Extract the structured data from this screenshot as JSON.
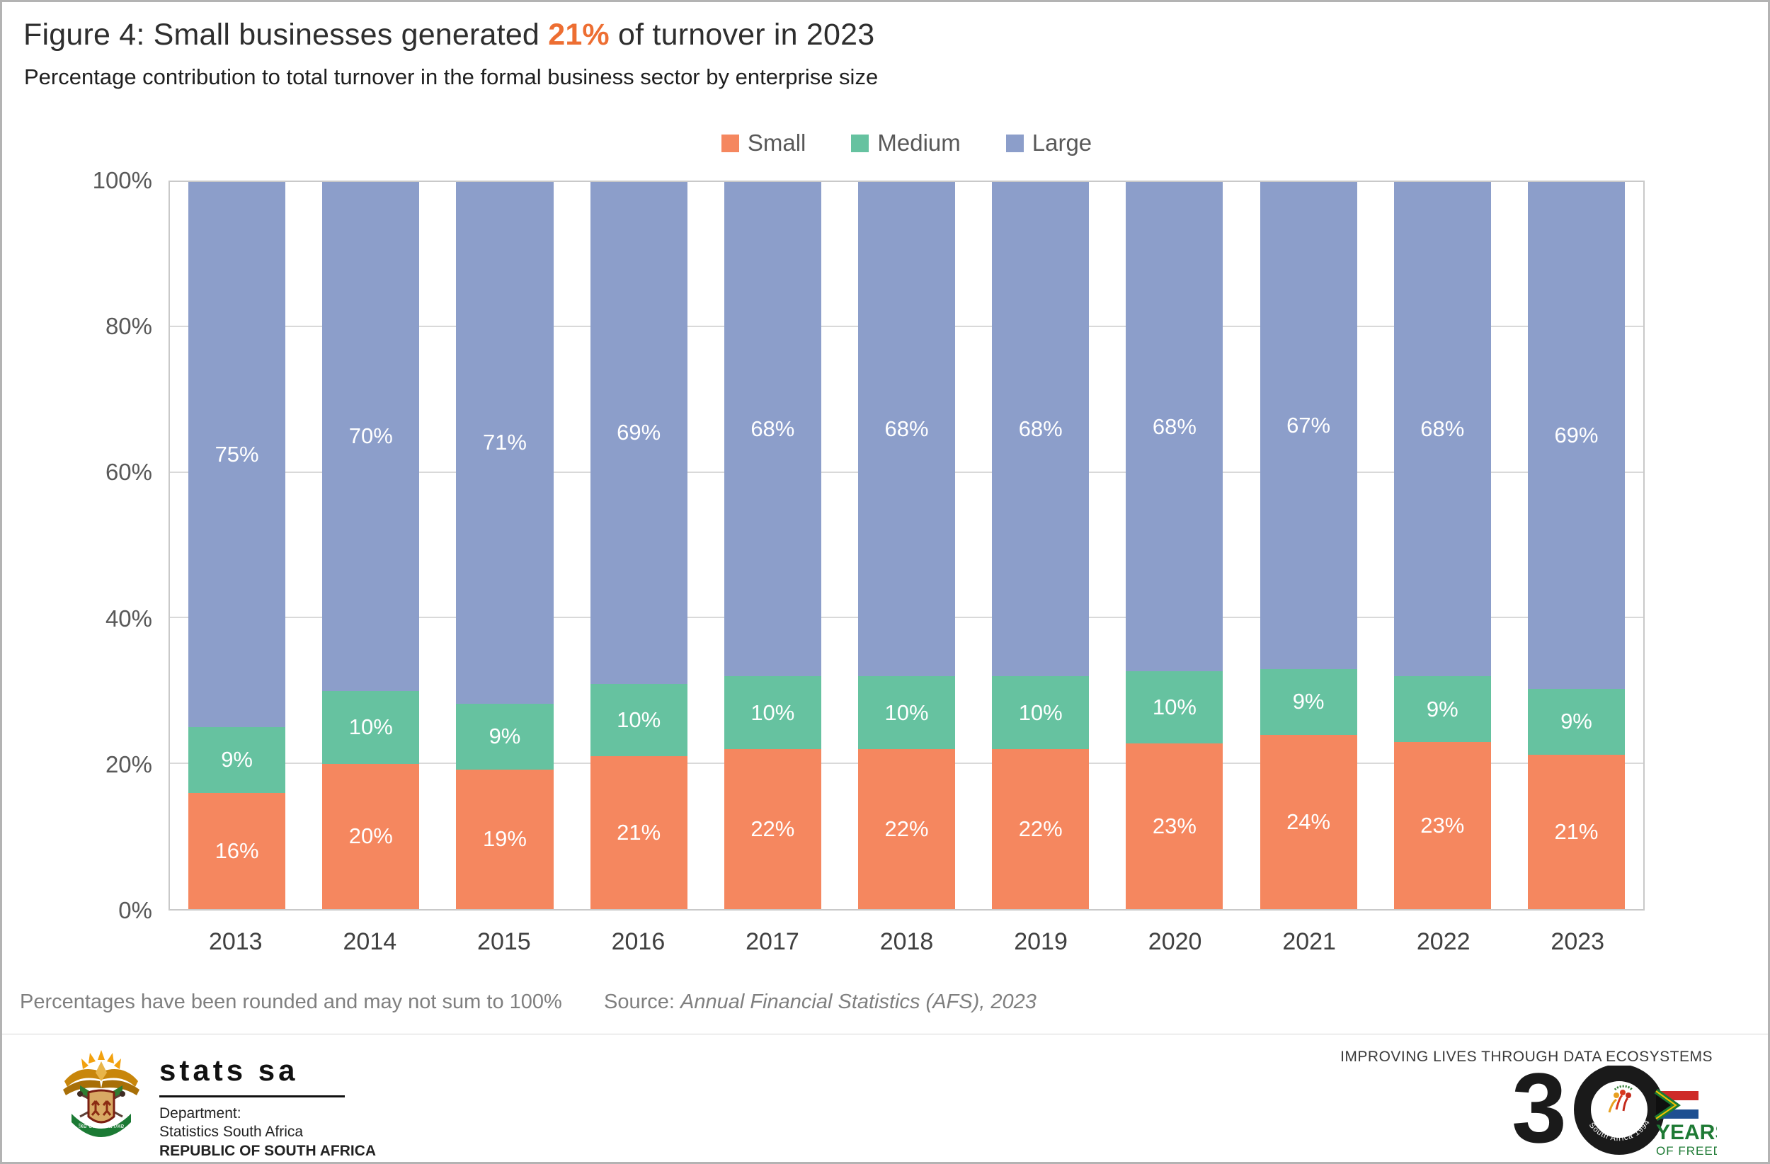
{
  "header": {
    "title_prefix": "Figure 4: Small businesses generated ",
    "title_highlight": "21%",
    "title_suffix": " of turnover in 2023",
    "subtitle": "Percentage contribution to total turnover in the formal business sector by enterprise size"
  },
  "chart_data": {
    "type": "bar",
    "stacked": true,
    "title": "Figure 4: Small businesses generated 21% of turnover in 2023",
    "subtitle": "Percentage contribution to total turnover in the formal business sector by enterprise size",
    "categories": [
      "2013",
      "2014",
      "2015",
      "2016",
      "2017",
      "2018",
      "2019",
      "2020",
      "2021",
      "2022",
      "2023"
    ],
    "series": [
      {
        "name": "Small",
        "color": "#F5875F",
        "values": [
          16,
          20,
          19,
          21,
          22,
          22,
          22,
          23,
          24,
          23,
          21
        ]
      },
      {
        "name": "Medium",
        "color": "#66C2A0",
        "values": [
          9,
          10,
          9,
          10,
          10,
          10,
          10,
          10,
          9,
          9,
          9
        ]
      },
      {
        "name": "Large",
        "color": "#8C9ECA",
        "values": [
          75,
          70,
          71,
          69,
          68,
          68,
          68,
          68,
          67,
          68,
          69
        ]
      }
    ],
    "xlabel": "",
    "ylabel": "",
    "ylim": [
      0,
      100
    ],
    "y_ticks": [
      "0%",
      "20%",
      "40%",
      "60%",
      "80%",
      "100%"
    ],
    "grid": "horizontal major every 20%",
    "legend_position": "top-center",
    "data_labels": "value percent shown inside every segment in white"
  },
  "footer": {
    "note": "Percentages have been rounded and may not sum to 100%",
    "source_label": "Source: ",
    "source_text": "Annual Financial Statistics (AFS), 2023"
  },
  "branding": {
    "statssa_word": "stats sa",
    "dept_line1": "Department:",
    "dept_line2": "Statistics South Africa",
    "dept_line3": "REPUBLIC OF SOUTH AFRICA",
    "motto": "!ke e: /xarra //ke",
    "tagline": "IMPROVING LIVES THROUGH DATA ECOSYSTEMS",
    "thirty_digit": "3",
    "arc_text": "South Africa 1994 - 2024",
    "years_label": "YEARS",
    "freedom_label": "OF FREEDOM"
  },
  "colors": {
    "title_highlight": "#ED6E32",
    "small": "#F5875F",
    "medium": "#66C2A0",
    "large": "#8C9ECA",
    "gridline": "#D9D9D9",
    "axis_text": "#595959",
    "years_green": "#1E7A34"
  }
}
